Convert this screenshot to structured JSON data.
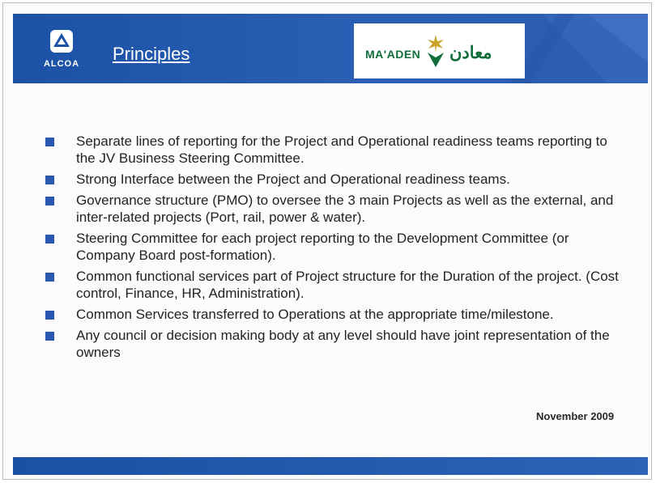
{
  "header": {
    "alcoa_logo_text": "ALCOA",
    "title": "Principles",
    "maaden_logo_latin": "MA'ADEN",
    "maaden_logo_arabic": "معادن",
    "colors": {
      "header_blue": "#2a5fb4",
      "maaden_green": "#0f6e3a",
      "bullet_blue": "#2a58b0"
    }
  },
  "bullets": [
    "Separate lines of reporting for the Project and Operational readiness teams reporting to the JV Business Steering Committee.",
    "Strong Interface between the Project and Operational readiness teams.",
    "Governance structure (PMO) to oversee the 3 main Projects as well as the external, and inter-related projects (Port, rail, power & water).",
    "Steering Committee for each project reporting to the Development Committee (or Company Board post-formation).",
    "Common functional services part of Project structure for the Duration of the project. (Cost control, Finance, HR, Administration).",
    "Common Services transferred to Operations at the appropriate time/milestone.",
    "Any council or decision making body at any level should have joint representation of the owners"
  ],
  "footer": {
    "date": "November 2009"
  }
}
